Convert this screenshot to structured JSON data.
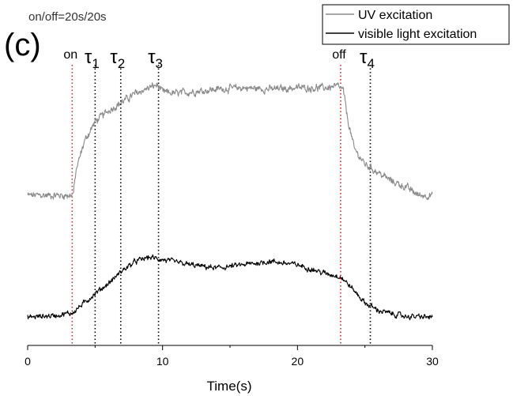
{
  "panel_label": "(c)",
  "condition": "on/off=20s/20s",
  "chart_data": {
    "type": "line",
    "title": "",
    "xlabel": "Time(s)",
    "ylabel": "",
    "xlim": [
      0,
      30
    ],
    "xticks": [
      0,
      10,
      20,
      30
    ],
    "xtick_labels": [
      "0",
      "10",
      "20",
      "30"
    ],
    "grid": false,
    "legend_position": "top-right",
    "series": [
      {
        "name": "UV excitation",
        "color": "#8a8a8a",
        "level_baseline": 0.1,
        "level_plateau": 0.88,
        "noise": 0.018,
        "points": [
          [
            0,
            0.1
          ],
          [
            3.2,
            0.1
          ],
          [
            3.4,
            0.12
          ],
          [
            3.6,
            0.28
          ],
          [
            4.2,
            0.48
          ],
          [
            5.0,
            0.62
          ],
          [
            6.0,
            0.7
          ],
          [
            7.0,
            0.76
          ],
          [
            8.0,
            0.82
          ],
          [
            9.0,
            0.86
          ],
          [
            9.6,
            0.88
          ],
          [
            10.0,
            0.83
          ],
          [
            11.0,
            0.82
          ],
          [
            12.0,
            0.83
          ],
          [
            14.0,
            0.85
          ],
          [
            16.0,
            0.86
          ],
          [
            18.0,
            0.85
          ],
          [
            20.0,
            0.86
          ],
          [
            22.0,
            0.86
          ],
          [
            23.0,
            0.87
          ],
          [
            23.4,
            0.84
          ],
          [
            23.7,
            0.65
          ],
          [
            24.2,
            0.43
          ],
          [
            25.0,
            0.32
          ],
          [
            26.0,
            0.26
          ],
          [
            27.0,
            0.2
          ],
          [
            28.0,
            0.16
          ],
          [
            29.0,
            0.1
          ],
          [
            30.0,
            0.1
          ]
        ]
      },
      {
        "name": "visible light excitation",
        "color": "#000000",
        "level_baseline": 0.1,
        "level_plateau": 0.82,
        "noise": 0.022,
        "points": [
          [
            0,
            0.1
          ],
          [
            2.0,
            0.12
          ],
          [
            3.3,
            0.15
          ],
          [
            4.2,
            0.27
          ],
          [
            5.0,
            0.38
          ],
          [
            6.0,
            0.5
          ],
          [
            7.0,
            0.65
          ],
          [
            8.0,
            0.76
          ],
          [
            9.0,
            0.81
          ],
          [
            10.0,
            0.78
          ],
          [
            12.0,
            0.72
          ],
          [
            14.0,
            0.68
          ],
          [
            16.0,
            0.72
          ],
          [
            18.0,
            0.76
          ],
          [
            20.0,
            0.72
          ],
          [
            22.0,
            0.62
          ],
          [
            23.2,
            0.58
          ],
          [
            24.0,
            0.45
          ],
          [
            25.0,
            0.27
          ],
          [
            26.0,
            0.18
          ],
          [
            27.0,
            0.14
          ],
          [
            28.0,
            0.11
          ],
          [
            30.0,
            0.1
          ]
        ]
      }
    ],
    "markers": [
      {
        "label": "on",
        "x": 3.3,
        "color": "#e02020",
        "style": "dotted"
      },
      {
        "label": "τ1",
        "x": 5.0,
        "color": "#000000",
        "style": "dotted"
      },
      {
        "label": "τ2",
        "x": 6.9,
        "color": "#000000",
        "style": "dotted"
      },
      {
        "label": "τ3",
        "x": 9.7,
        "color": "#000000",
        "style": "dotted"
      },
      {
        "label": "off",
        "x": 23.2,
        "color": "#e02020",
        "style": "dotted"
      },
      {
        "label": "τ4",
        "x": 25.4,
        "color": "#000000",
        "style": "dotted"
      }
    ]
  }
}
